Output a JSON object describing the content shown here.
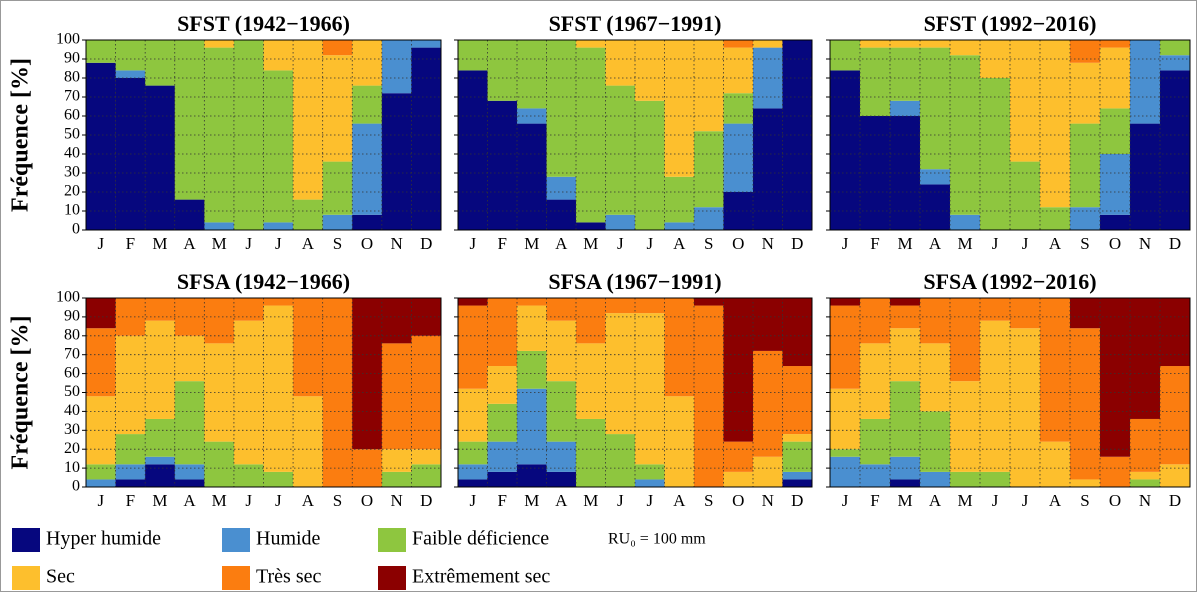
{
  "chart_data": [
    {
      "type": "bar",
      "stacked": true,
      "title": "SFST (1942−1966)",
      "ylabel": "Fréquence [%]",
      "categories": [
        "J",
        "F",
        "M",
        "A",
        "M",
        "J",
        "J",
        "A",
        "S",
        "O",
        "N",
        "D"
      ],
      "ylim": [
        0,
        100
      ],
      "yticks": [
        0,
        10,
        20,
        30,
        40,
        50,
        60,
        70,
        80,
        90,
        100
      ],
      "grid": true,
      "series": [
        {
          "name": "Hyper humide",
          "color": "#06077e",
          "values": [
            88,
            80,
            76,
            16,
            0,
            0,
            0,
            0,
            0,
            8,
            72,
            96
          ]
        },
        {
          "name": "Humide",
          "color": "#4a8fd0",
          "values": [
            0,
            4,
            0,
            0,
            4,
            0,
            4,
            0,
            8,
            48,
            28,
            4
          ]
        },
        {
          "name": "Faible déficience",
          "color": "#8ec63f",
          "values": [
            12,
            16,
            24,
            84,
            92,
            100,
            80,
            16,
            28,
            20,
            0,
            0
          ]
        },
        {
          "name": "Sec",
          "color": "#fdbf2d",
          "values": [
            0,
            0,
            0,
            0,
            4,
            0,
            16,
            84,
            56,
            24,
            0,
            0
          ]
        },
        {
          "name": "Très sec",
          "color": "#fb7d10",
          "values": [
            0,
            0,
            0,
            0,
            0,
            0,
            0,
            0,
            8,
            0,
            0,
            0
          ]
        },
        {
          "name": "Extrêmement sec",
          "color": "#8b0000",
          "values": [
            0,
            0,
            0,
            0,
            0,
            0,
            0,
            0,
            0,
            0,
            0,
            0
          ]
        }
      ]
    },
    {
      "type": "bar",
      "stacked": true,
      "title": "SFST (1967−1991)",
      "categories": [
        "J",
        "F",
        "M",
        "A",
        "M",
        "J",
        "J",
        "A",
        "S",
        "O",
        "N",
        "D"
      ],
      "ylim": [
        0,
        100
      ],
      "yticks": [
        0,
        10,
        20,
        30,
        40,
        50,
        60,
        70,
        80,
        90,
        100
      ],
      "grid": true,
      "series": [
        {
          "name": "Hyper humide",
          "color": "#06077e",
          "values": [
            84,
            68,
            56,
            16,
            4,
            0,
            0,
            0,
            0,
            20,
            64,
            100
          ]
        },
        {
          "name": "Humide",
          "color": "#4a8fd0",
          "values": [
            0,
            0,
            8,
            12,
            0,
            8,
            0,
            4,
            12,
            36,
            32,
            0
          ]
        },
        {
          "name": "Faible déficience",
          "color": "#8ec63f",
          "values": [
            16,
            32,
            36,
            72,
            92,
            68,
            68,
            24,
            40,
            16,
            0,
            0
          ]
        },
        {
          "name": "Sec",
          "color": "#fdbf2d",
          "values": [
            0,
            0,
            0,
            0,
            4,
            24,
            32,
            72,
            48,
            24,
            4,
            0
          ]
        },
        {
          "name": "Très sec",
          "color": "#fb7d10",
          "values": [
            0,
            0,
            0,
            0,
            0,
            0,
            0,
            0,
            0,
            4,
            0,
            0
          ]
        },
        {
          "name": "Extrêmement sec",
          "color": "#8b0000",
          "values": [
            0,
            0,
            0,
            0,
            0,
            0,
            0,
            0,
            0,
            0,
            0,
            0
          ]
        }
      ]
    },
    {
      "type": "bar",
      "stacked": true,
      "title": "SFST (1992−2016)",
      "categories": [
        "J",
        "F",
        "M",
        "A",
        "M",
        "J",
        "J",
        "A",
        "S",
        "O",
        "N",
        "D"
      ],
      "ylim": [
        0,
        100
      ],
      "yticks": [
        0,
        10,
        20,
        30,
        40,
        50,
        60,
        70,
        80,
        90,
        100
      ],
      "grid": true,
      "series": [
        {
          "name": "Hyper humide",
          "color": "#06077e",
          "values": [
            84,
            60,
            60,
            24,
            0,
            0,
            0,
            0,
            0,
            8,
            56,
            84
          ]
        },
        {
          "name": "Humide",
          "color": "#4a8fd0",
          "values": [
            0,
            0,
            8,
            8,
            8,
            0,
            0,
            0,
            12,
            32,
            44,
            8
          ]
        },
        {
          "name": "Faible déficience",
          "color": "#8ec63f",
          "values": [
            16,
            36,
            28,
            64,
            84,
            80,
            36,
            12,
            44,
            24,
            0,
            8
          ]
        },
        {
          "name": "Sec",
          "color": "#fdbf2d",
          "values": [
            0,
            4,
            4,
            4,
            8,
            20,
            64,
            88,
            32,
            32,
            0,
            0
          ]
        },
        {
          "name": "Très sec",
          "color": "#fb7d10",
          "values": [
            0,
            0,
            0,
            0,
            0,
            0,
            0,
            0,
            12,
            4,
            0,
            0
          ]
        },
        {
          "name": "Extrêmement sec",
          "color": "#8b0000",
          "values": [
            0,
            0,
            0,
            0,
            0,
            0,
            0,
            0,
            0,
            0,
            0,
            0
          ]
        }
      ]
    },
    {
      "type": "bar",
      "stacked": true,
      "title": "SFSA (1942−1966)",
      "ylabel": "Fréquence [%]",
      "categories": [
        "J",
        "F",
        "M",
        "A",
        "M",
        "J",
        "J",
        "A",
        "S",
        "O",
        "N",
        "D"
      ],
      "ylim": [
        0,
        100
      ],
      "yticks": [
        0,
        10,
        20,
        30,
        40,
        50,
        60,
        70,
        80,
        90,
        100
      ],
      "grid": true,
      "series": [
        {
          "name": "Hyper humide",
          "color": "#06077e",
          "values": [
            0,
            4,
            12,
            4,
            0,
            0,
            0,
            0,
            0,
            0,
            0,
            0
          ]
        },
        {
          "name": "Humide",
          "color": "#4a8fd0",
          "values": [
            4,
            8,
            4,
            8,
            0,
            0,
            0,
            0,
            0,
            0,
            0,
            0
          ]
        },
        {
          "name": "Faible déficience",
          "color": "#8ec63f",
          "values": [
            8,
            16,
            20,
            44,
            24,
            12,
            8,
            0,
            0,
            0,
            8,
            12
          ]
        },
        {
          "name": "Sec",
          "color": "#fdbf2d",
          "values": [
            36,
            52,
            52,
            24,
            52,
            76,
            88,
            48,
            0,
            0,
            12,
            8
          ]
        },
        {
          "name": "Très sec",
          "color": "#fb7d10",
          "values": [
            36,
            20,
            12,
            20,
            24,
            12,
            4,
            52,
            100,
            20,
            56,
            60
          ]
        },
        {
          "name": "Extrêmement sec",
          "color": "#8b0000",
          "values": [
            16,
            0,
            0,
            0,
            0,
            0,
            0,
            0,
            0,
            80,
            24,
            20
          ]
        }
      ]
    },
    {
      "type": "bar",
      "stacked": true,
      "title": "SFSA (1967−1991)",
      "categories": [
        "J",
        "F",
        "M",
        "A",
        "M",
        "J",
        "J",
        "A",
        "S",
        "O",
        "N",
        "D"
      ],
      "ylim": [
        0,
        100
      ],
      "yticks": [
        0,
        10,
        20,
        30,
        40,
        50,
        60,
        70,
        80,
        90,
        100
      ],
      "grid": true,
      "series": [
        {
          "name": "Hyper humide",
          "color": "#06077e",
          "values": [
            4,
            8,
            12,
            8,
            0,
            0,
            0,
            0,
            0,
            0,
            0,
            4
          ]
        },
        {
          "name": "Humide",
          "color": "#4a8fd0",
          "values": [
            8,
            16,
            40,
            16,
            0,
            0,
            4,
            0,
            0,
            0,
            0,
            4
          ]
        },
        {
          "name": "Faible déficience",
          "color": "#8ec63f",
          "values": [
            12,
            20,
            20,
            32,
            36,
            28,
            8,
            0,
            0,
            0,
            0,
            16
          ]
        },
        {
          "name": "Sec",
          "color": "#fdbf2d",
          "values": [
            28,
            20,
            24,
            32,
            40,
            64,
            80,
            48,
            0,
            8,
            16,
            4
          ]
        },
        {
          "name": "Très sec",
          "color": "#fb7d10",
          "values": [
            44,
            36,
            4,
            12,
            24,
            8,
            8,
            52,
            96,
            16,
            56,
            36
          ]
        },
        {
          "name": "Extrêmement sec",
          "color": "#8b0000",
          "values": [
            4,
            0,
            0,
            0,
            0,
            0,
            0,
            0,
            4,
            76,
            28,
            36
          ]
        }
      ]
    },
    {
      "type": "bar",
      "stacked": true,
      "title": "SFSA (1992−2016)",
      "categories": [
        "J",
        "F",
        "M",
        "A",
        "M",
        "J",
        "J",
        "A",
        "S",
        "O",
        "N",
        "D"
      ],
      "ylim": [
        0,
        100
      ],
      "yticks": [
        0,
        10,
        20,
        30,
        40,
        50,
        60,
        70,
        80,
        90,
        100
      ],
      "grid": true,
      "series": [
        {
          "name": "Hyper humide",
          "color": "#06077e",
          "values": [
            0,
            0,
            4,
            0,
            0,
            0,
            0,
            0,
            0,
            0,
            0,
            0
          ]
        },
        {
          "name": "Humide",
          "color": "#4a8fd0",
          "values": [
            16,
            12,
            12,
            8,
            0,
            0,
            0,
            0,
            0,
            0,
            0,
            0
          ]
        },
        {
          "name": "Faible déficience",
          "color": "#8ec63f",
          "values": [
            4,
            24,
            40,
            32,
            8,
            8,
            0,
            0,
            0,
            0,
            4,
            0
          ]
        },
        {
          "name": "Sec",
          "color": "#fdbf2d",
          "values": [
            32,
            40,
            28,
            36,
            48,
            80,
            84,
            24,
            4,
            0,
            4,
            12
          ]
        },
        {
          "name": "Très sec",
          "color": "#fb7d10",
          "values": [
            44,
            24,
            12,
            24,
            44,
            12,
            16,
            76,
            80,
            16,
            28,
            52
          ]
        },
        {
          "name": "Extrêmement sec",
          "color": "#8b0000",
          "values": [
            4,
            0,
            4,
            0,
            0,
            0,
            0,
            0,
            16,
            84,
            64,
            36
          ]
        }
      ]
    }
  ],
  "annotation": "RU₀ = 100 mm"
}
